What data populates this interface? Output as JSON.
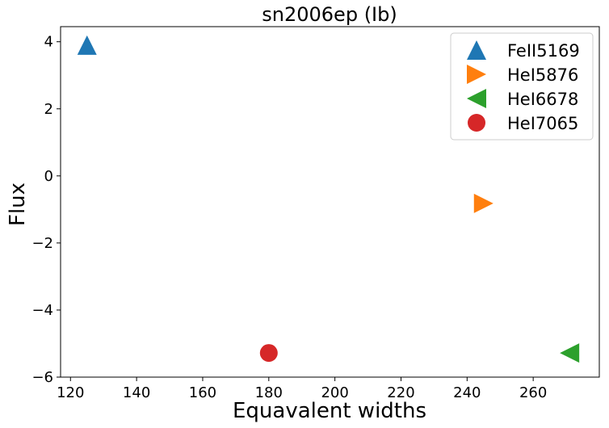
{
  "chart_data": {
    "type": "scatter",
    "title": "sn2006ep (Ib)",
    "xlabel": "Equavalent widths",
    "ylabel": "Flux",
    "xlim": [
      117,
      280
    ],
    "ylim": [
      -6,
      4.45
    ],
    "xticks": [
      120,
      140,
      160,
      180,
      200,
      220,
      240,
      260
    ],
    "yticks": [
      -6,
      -4,
      -2,
      0,
      2,
      4
    ],
    "grid": false,
    "legend_position": "top-right",
    "series": [
      {
        "name": "FeII5169",
        "marker": "triangle-up",
        "color": "#1f77b4",
        "points": [
          {
            "x": 125,
            "y": 3.9
          }
        ]
      },
      {
        "name": "HeI5876",
        "marker": "triangle-right",
        "color": "#ff7f0e",
        "points": [
          {
            "x": 245,
            "y": -0.82
          }
        ]
      },
      {
        "name": "HeI6678",
        "marker": "triangle-left",
        "color": "#2ca02c",
        "points": [
          {
            "x": 271,
            "y": -5.28
          }
        ]
      },
      {
        "name": "HeI7065",
        "marker": "circle",
        "color": "#d62728",
        "points": [
          {
            "x": 180,
            "y": -5.28
          }
        ]
      }
    ]
  }
}
